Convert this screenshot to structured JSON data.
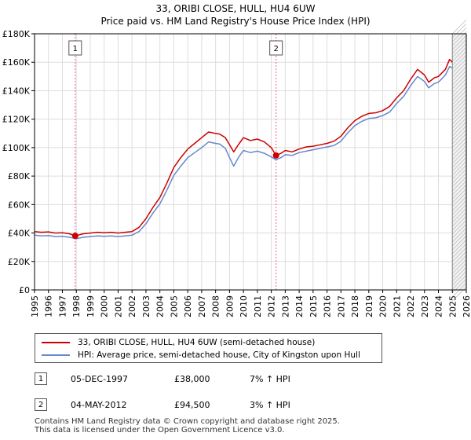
{
  "chart_data": {
    "type": "line",
    "title": "33, ORIBI CLOSE, HULL, HU4 6UW",
    "subtitle": "Price paid vs. HM Land Registry's House Price Index (HPI)",
    "xlabel": "",
    "ylabel": "",
    "xlim": [
      1995,
      2026
    ],
    "ylim": [
      0,
      180000
    ],
    "y_ticks": [
      0,
      20000,
      40000,
      60000,
      80000,
      100000,
      120000,
      140000,
      160000,
      180000
    ],
    "y_tick_labels": [
      "£0",
      "£20K",
      "£40K",
      "£60K",
      "£80K",
      "£100K",
      "£120K",
      "£140K",
      "£160K",
      "£180K"
    ],
    "x_ticks": [
      1995,
      1996,
      1997,
      1998,
      1999,
      2000,
      2001,
      2002,
      2003,
      2004,
      2005,
      2006,
      2007,
      2008,
      2009,
      2010,
      2011,
      2012,
      2013,
      2014,
      2015,
      2016,
      2017,
      2018,
      2019,
      2020,
      2021,
      2022,
      2023,
      2024,
      2025,
      2026
    ],
    "x_tick_labels": [
      "1995",
      "1996",
      "1997",
      "1998",
      "1999",
      "2000",
      "2001",
      "2002",
      "2003",
      "2004",
      "2005",
      "2006",
      "2007",
      "2008",
      "2009",
      "2010",
      "2011",
      "2012",
      "2013",
      "2014",
      "2015",
      "2016",
      "2017",
      "2018",
      "2019",
      "2020",
      "2021",
      "2022",
      "2023",
      "2024",
      "2025",
      "2026"
    ],
    "grid": true,
    "forecast_start": 2025.0,
    "series": [
      {
        "name": "33, ORIBI CLOSE, HULL, HU4 6UW (semi-detached house)",
        "color": "#cc0000",
        "x": [
          1995.0,
          1995.5,
          1996.0,
          1996.5,
          1997.0,
          1997.5,
          1997.92,
          1998.5,
          1999.0,
          1999.5,
          2000.0,
          2000.5,
          2001.0,
          2001.5,
          2002.0,
          2002.5,
          2003.0,
          2003.5,
          2004.0,
          2004.5,
          2005.0,
          2005.5,
          2006.0,
          2006.5,
          2007.0,
          2007.5,
          2008.0,
          2008.3,
          2008.7,
          2009.0,
          2009.3,
          2009.7,
          2010.0,
          2010.5,
          2011.0,
          2011.5,
          2012.0,
          2012.34,
          2012.7,
          2013.0,
          2013.5,
          2014.0,
          2014.5,
          2015.0,
          2015.5,
          2016.0,
          2016.5,
          2017.0,
          2017.5,
          2018.0,
          2018.5,
          2019.0,
          2019.5,
          2020.0,
          2020.5,
          2021.0,
          2021.5,
          2022.0,
          2022.5,
          2023.0,
          2023.3,
          2023.7,
          2024.0,
          2024.5,
          2024.8,
          2025.0
        ],
        "values": [
          41000,
          40500,
          40800,
          40000,
          40200,
          39500,
          38000,
          39500,
          40000,
          40500,
          40200,
          40500,
          40000,
          40500,
          41000,
          44000,
          50000,
          58000,
          65000,
          75000,
          86000,
          93000,
          99000,
          103000,
          107000,
          111000,
          110000,
          109500,
          107000,
          102000,
          97000,
          103000,
          107000,
          105000,
          106000,
          104000,
          100000,
          94500,
          96000,
          98000,
          97000,
          99000,
          100500,
          101000,
          102000,
          103000,
          104500,
          108000,
          114000,
          119000,
          122000,
          124000,
          124500,
          126000,
          129000,
          135000,
          140000,
          148000,
          155000,
          151000,
          146000,
          149000,
          150000,
          155000,
          162000,
          160000
        ]
      },
      {
        "name": "HPI: Average price, semi-detached house, City of Kingston upon Hull",
        "color": "#6688cc",
        "x": [
          1995.0,
          1995.5,
          1996.0,
          1996.5,
          1997.0,
          1997.5,
          1998.0,
          1998.5,
          1999.0,
          1999.5,
          2000.0,
          2000.5,
          2001.0,
          2001.5,
          2002.0,
          2002.5,
          2003.0,
          2003.5,
          2004.0,
          2004.5,
          2005.0,
          2005.5,
          2006.0,
          2006.5,
          2007.0,
          2007.5,
          2008.0,
          2008.3,
          2008.7,
          2009.0,
          2009.3,
          2009.7,
          2010.0,
          2010.5,
          2011.0,
          2011.5,
          2012.0,
          2012.34,
          2012.7,
          2013.0,
          2013.5,
          2014.0,
          2014.5,
          2015.0,
          2015.5,
          2016.0,
          2016.5,
          2017.0,
          2017.5,
          2018.0,
          2018.5,
          2019.0,
          2019.5,
          2020.0,
          2020.5,
          2021.0,
          2021.5,
          2022.0,
          2022.5,
          2023.0,
          2023.3,
          2023.7,
          2024.0,
          2024.5,
          2024.8,
          2025.0
        ],
        "values": [
          38500,
          38000,
          38200,
          37500,
          37700,
          37000,
          36000,
          37000,
          37500,
          38000,
          37700,
          38000,
          37500,
          38000,
          38500,
          41000,
          46500,
          54000,
          60500,
          70000,
          80500,
          87000,
          93000,
          96500,
          100000,
          104000,
          103000,
          102500,
          99500,
          93000,
          87000,
          94000,
          98000,
          96500,
          97500,
          96000,
          93500,
          91500,
          93000,
          95000,
          94500,
          96500,
          97500,
          98500,
          99500,
          100500,
          101500,
          104500,
          110500,
          115500,
          118500,
          120500,
          121000,
          122500,
          125000,
          131000,
          136000,
          143500,
          150000,
          146500,
          142000,
          145000,
          146000,
          151000,
          157000,
          156000
        ]
      }
    ],
    "sales": [
      {
        "label": "1",
        "date": "05-DEC-1997",
        "year": 1997.92,
        "price": 38000,
        "price_text": "£38,000",
        "hpi": "7% ↑ HPI"
      },
      {
        "label": "2",
        "date": "04-MAY-2012",
        "year": 2012.34,
        "price": 94500,
        "price_text": "£94,500",
        "hpi": "3% ↑ HPI"
      }
    ]
  },
  "legend": {
    "red_label": "33, ORIBI CLOSE, HULL, HU4 6UW (semi-detached house)",
    "blue_label": "HPI: Average price, semi-detached house, City of Kingston upon Hull"
  },
  "colors": {
    "red": "#cc0000",
    "blue": "#6688cc",
    "grid": "#dddddd",
    "marker_line": "#ee6677"
  },
  "footer": {
    "line1": "Contains HM Land Registry data © Crown copyright and database right 2025.",
    "line2": "This data is licensed under the Open Government Licence v3.0."
  }
}
